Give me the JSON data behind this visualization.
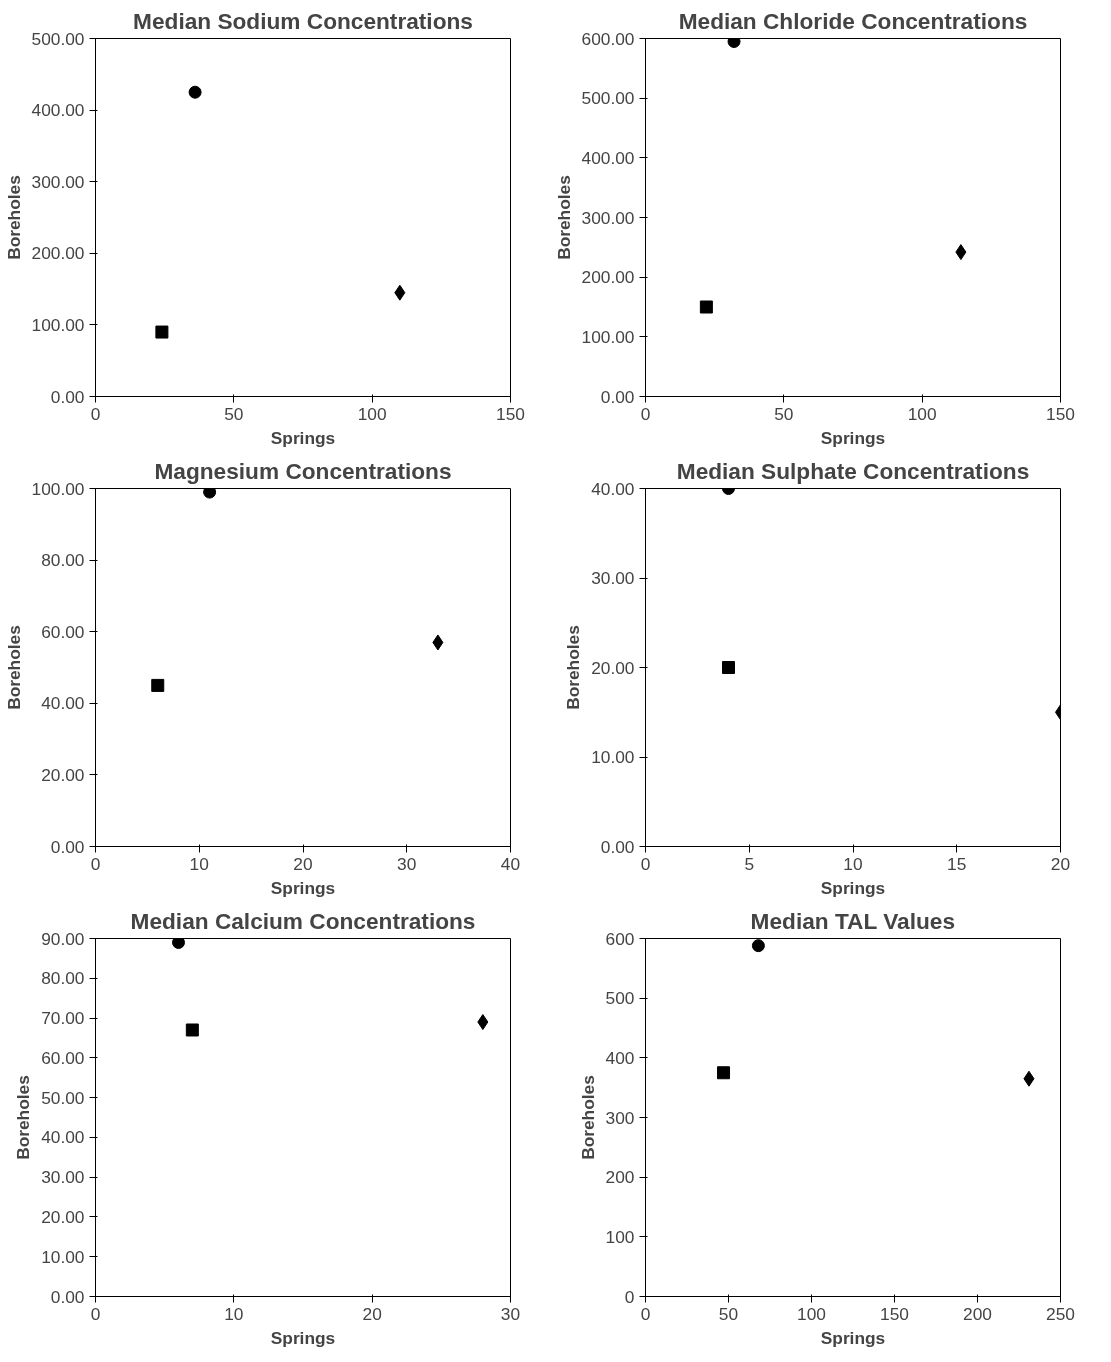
{
  "chart_data": [
    {
      "type": "scatter",
      "title": "Median Sodium Concentrations",
      "xlabel": "Springs",
      "ylabel": "Boreholes",
      "xlim": [
        0,
        150
      ],
      "xticks": [
        0,
        50,
        100,
        150
      ],
      "ylim": [
        0,
        500
      ],
      "yticks": [
        {
          "value": 0,
          "label": "0.00"
        },
        {
          "value": 100,
          "label": "100.00"
        },
        {
          "value": 200,
          "label": "200.00"
        },
        {
          "value": 300,
          "label": "300.00"
        },
        {
          "value": 400,
          "label": "400.00"
        },
        {
          "value": 500,
          "label": "500.00"
        }
      ],
      "grid": false,
      "series": [
        {
          "color": "#000000",
          "marker": "circle",
          "x": [
            36
          ],
          "values": [
            425
          ]
        },
        {
          "color": "#000000",
          "marker": "square",
          "x": [
            24
          ],
          "values": [
            90
          ]
        },
        {
          "color": "#000000",
          "marker": "diamond",
          "x": [
            110
          ],
          "values": [
            145
          ]
        }
      ]
    },
    {
      "type": "scatter",
      "title": "Median Chloride Concentrations",
      "xlabel": "Springs",
      "ylabel": "Boreholes",
      "xlim": [
        0,
        150
      ],
      "xticks": [
        0,
        50,
        100,
        150
      ],
      "ylim": [
        0,
        600
      ],
      "yticks": [
        {
          "value": 0,
          "label": "0.00"
        },
        {
          "value": 100,
          "label": "100.00"
        },
        {
          "value": 200,
          "label": "200.00"
        },
        {
          "value": 300,
          "label": "300.00"
        },
        {
          "value": 400,
          "label": "400.00"
        },
        {
          "value": 500,
          "label": "500.00"
        },
        {
          "value": 600,
          "label": "600.00"
        }
      ],
      "grid": false,
      "series": [
        {
          "color": "#000000",
          "marker": "circle",
          "x": [
            32
          ],
          "values": [
            595
          ]
        },
        {
          "color": "#000000",
          "marker": "square",
          "x": [
            22
          ],
          "values": [
            150
          ]
        },
        {
          "color": "#000000",
          "marker": "diamond",
          "x": [
            114
          ],
          "values": [
            242
          ]
        }
      ]
    },
    {
      "type": "scatter",
      "title": "Magnesium Concentrations",
      "xlabel": "Springs",
      "ylabel": "Boreholes",
      "xlim": [
        0,
        40
      ],
      "xticks": [
        0,
        10,
        20,
        30,
        40
      ],
      "ylim": [
        0,
        100
      ],
      "yticks": [
        {
          "value": 0,
          "label": "0.00"
        },
        {
          "value": 20,
          "label": "20.00"
        },
        {
          "value": 40,
          "label": "40.00"
        },
        {
          "value": 60,
          "label": "60.00"
        },
        {
          "value": 80,
          "label": "80.00"
        },
        {
          "value": 100,
          "label": "100.00"
        }
      ],
      "grid": false,
      "series": [
        {
          "color": "#000000",
          "marker": "circle",
          "x": [
            11
          ],
          "values": [
            99
          ]
        },
        {
          "color": "#000000",
          "marker": "square",
          "x": [
            6
          ],
          "values": [
            45
          ]
        },
        {
          "color": "#000000",
          "marker": "diamond",
          "x": [
            33
          ],
          "values": [
            57
          ]
        }
      ]
    },
    {
      "type": "scatter",
      "title": "Median Sulphate Concentrations",
      "xlabel": "Springs",
      "ylabel": "Boreholes",
      "xlim": [
        0,
        20
      ],
      "xticks": [
        0,
        5,
        10,
        15,
        20
      ],
      "ylim": [
        0,
        40
      ],
      "yticks": [
        {
          "value": 0,
          "label": "0.00"
        },
        {
          "value": 10,
          "label": "10.00"
        },
        {
          "value": 20,
          "label": "20.00"
        },
        {
          "value": 30,
          "label": "30.00"
        },
        {
          "value": 40,
          "label": "40.00"
        }
      ],
      "grid": false,
      "series": [
        {
          "color": "#000000",
          "marker": "circle",
          "x": [
            4
          ],
          "values": [
            40
          ]
        },
        {
          "color": "#000000",
          "marker": "square",
          "x": [
            4
          ],
          "values": [
            20
          ]
        },
        {
          "color": "#000000",
          "marker": "diamond",
          "x": [
            20
          ],
          "values": [
            15
          ]
        }
      ]
    },
    {
      "type": "scatter",
      "title": "Median Calcium Concentrations",
      "xlabel": "Springs",
      "ylabel": "Boreholes",
      "xlim": [
        0,
        30
      ],
      "xticks": [
        0,
        10,
        20,
        30
      ],
      "ylim": [
        0,
        90
      ],
      "yticks": [
        {
          "value": 0,
          "label": "0.00"
        },
        {
          "value": 10,
          "label": "10.00"
        },
        {
          "value": 20,
          "label": "20.00"
        },
        {
          "value": 30,
          "label": "30.00"
        },
        {
          "value": 40,
          "label": "40.00"
        },
        {
          "value": 50,
          "label": "50.00"
        },
        {
          "value": 60,
          "label": "60.00"
        },
        {
          "value": 70,
          "label": "70.00"
        },
        {
          "value": 80,
          "label": "80.00"
        },
        {
          "value": 90,
          "label": "90.00"
        }
      ],
      "grid": false,
      "series": [
        {
          "color": "#000000",
          "marker": "circle",
          "x": [
            6
          ],
          "values": [
            89
          ]
        },
        {
          "color": "#000000",
          "marker": "square",
          "x": [
            7
          ],
          "values": [
            67
          ]
        },
        {
          "color": "#000000",
          "marker": "diamond",
          "x": [
            28
          ],
          "values": [
            69
          ]
        }
      ]
    },
    {
      "type": "scatter",
      "title": "Median TAL Values",
      "xlabel": "Springs",
      "ylabel": "Boreholes",
      "xlim": [
        0,
        250
      ],
      "xticks": [
        0,
        50,
        100,
        150,
        200,
        250
      ],
      "ylim": [
        0,
        600
      ],
      "yticks": [
        0,
        100,
        200,
        300,
        400,
        500,
        600
      ],
      "grid": false,
      "series": [
        {
          "color": "#000000",
          "marker": "circle",
          "x": [
            68
          ],
          "values": [
            588
          ]
        },
        {
          "color": "#000000",
          "marker": "square",
          "x": [
            47
          ],
          "values": [
            375
          ]
        },
        {
          "color": "#000000",
          "marker": "diamond",
          "x": [
            231
          ],
          "values": [
            365
          ]
        }
      ]
    }
  ]
}
